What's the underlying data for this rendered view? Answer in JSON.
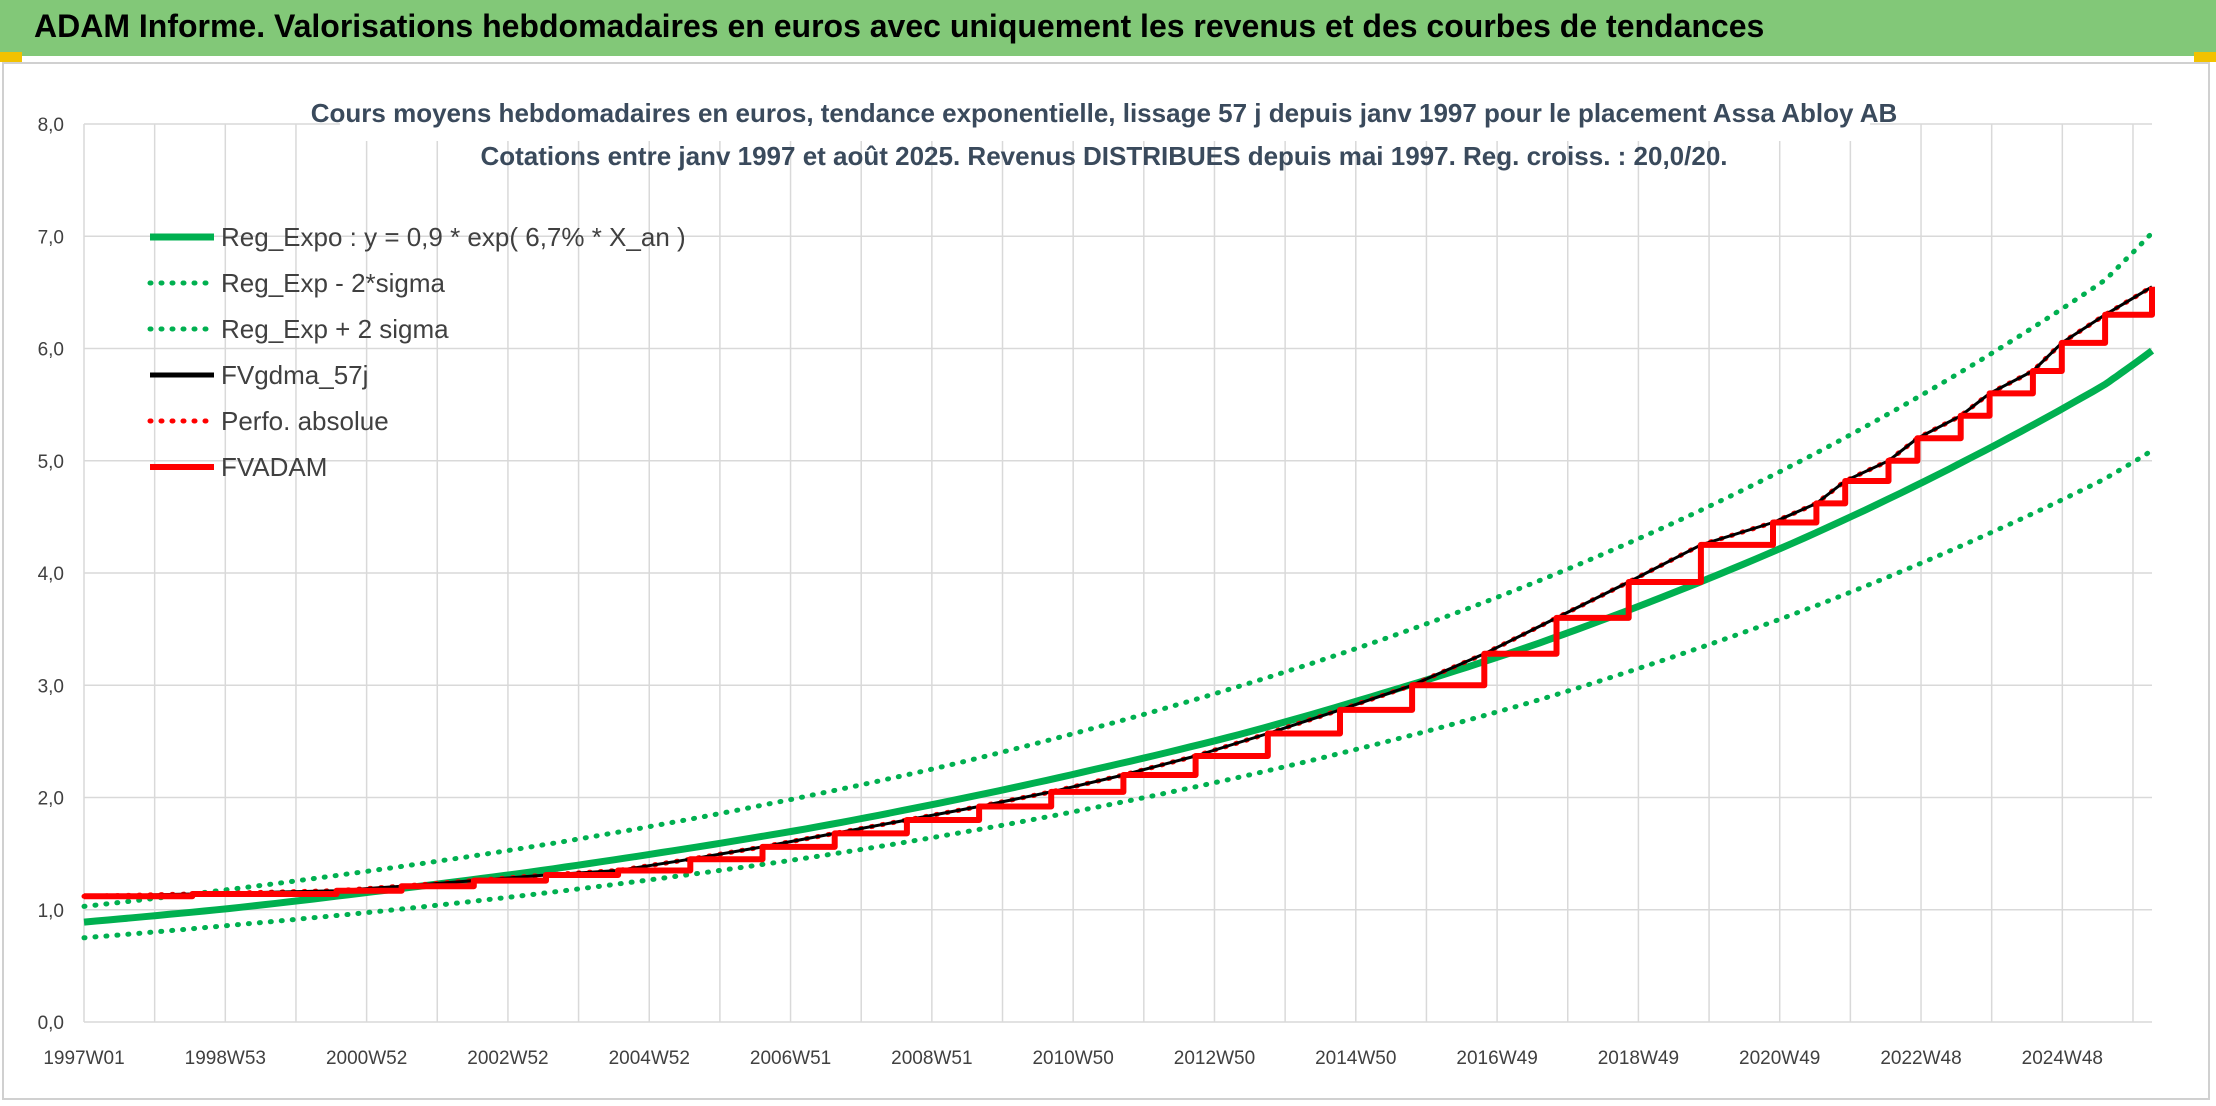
{
  "header": {
    "title": "ADAM Informe. Valorisations hebdomadaires en euros avec uniquement les revenus et des courbes de tendances"
  },
  "colors": {
    "banner": "#82c878",
    "green": "#00b050",
    "red": "#ff0000",
    "black": "#000000",
    "grid": "#d9d9d9"
  },
  "chart_data": {
    "type": "line",
    "title": "Cours moyens hebdomadaires en euros, tendance exponentielle, lissage 57 j depuis janv 1997 pour le placement Assa Abloy AB",
    "subtitle": "Cotations entre janv 1997 et août 2025. Revenus DISTRIBUES depuis mai 1997. Reg. croiss. : 20,0/20.",
    "xlabel": "",
    "ylabel": "",
    "ylim": [
      0,
      8
    ],
    "y_ticks": [
      "0,0",
      "1,0",
      "2,0",
      "3,0",
      "4,0",
      "5,0",
      "6,0",
      "7,0",
      "8,0"
    ],
    "x_ticks": [
      "1997W01",
      "1998W53",
      "2000W52",
      "2002W52",
      "2004W52",
      "2006W51",
      "2008W51",
      "2010W50",
      "2012W50",
      "2014W50",
      "2016W49",
      "2018W49",
      "2020W49",
      "2022W48",
      "2024W48"
    ],
    "x_range_years": [
      1997.0,
      2025.65
    ],
    "grid": true,
    "legend_position": "top-left",
    "series": [
      {
        "name": "Reg_Expo : y = 0,9 * exp( 6,7% *  X_an )",
        "style": "solid-thick",
        "color": "#00b050",
        "x": [
          1997,
          1999,
          2001,
          2003,
          2005,
          2007,
          2009,
          2011,
          2013,
          2015,
          2017,
          2019,
          2021,
          2023,
          2025,
          2025.65
        ],
        "values": [
          0.89,
          1.01,
          1.16,
          1.32,
          1.51,
          1.72,
          1.97,
          2.25,
          2.56,
          2.93,
          3.34,
          3.82,
          4.36,
          4.98,
          5.68,
          5.98
        ]
      },
      {
        "name": "Reg_Exp - 2*sigma",
        "style": "dotted",
        "color": "#00b050",
        "x": [
          1997,
          1999,
          2001,
          2003,
          2005,
          2007,
          2009,
          2011,
          2013,
          2015,
          2017,
          2019,
          2021,
          2023,
          2025,
          2025.65
        ],
        "values": [
          0.75,
          0.86,
          0.98,
          1.12,
          1.28,
          1.46,
          1.67,
          1.91,
          2.18,
          2.49,
          2.84,
          3.25,
          3.71,
          4.24,
          4.84,
          5.09
        ]
      },
      {
        "name": "Reg_Exp + 2 sigma",
        "style": "dotted",
        "color": "#00b050",
        "x": [
          1997,
          1999,
          2001,
          2003,
          2005,
          2007,
          2009,
          2011,
          2013,
          2015,
          2017,
          2019,
          2021,
          2023,
          2025,
          2025.65
        ],
        "values": [
          1.03,
          1.18,
          1.35,
          1.54,
          1.76,
          2.01,
          2.29,
          2.62,
          2.99,
          3.41,
          3.89,
          4.44,
          5.07,
          5.79,
          6.61,
          7.03
        ]
      },
      {
        "name": "FVgdma_57j",
        "style": "solid",
        "color": "#000000",
        "x": [
          1997,
          1999,
          2001,
          2003,
          2005,
          2007,
          2009,
          2011,
          2013,
          2015,
          2017,
          2019,
          2021,
          2023,
          2025,
          2025.65
        ],
        "values": [
          1.12,
          1.15,
          1.2,
          1.3,
          1.4,
          1.6,
          1.82,
          2.1,
          2.48,
          2.92,
          3.5,
          4.1,
          4.75,
          5.52,
          6.35,
          6.55
        ]
      },
      {
        "name": "Perfo. absolue",
        "style": "dotted",
        "color": "#ff0000",
        "x": [
          1997,
          1999,
          2001,
          2003,
          2005,
          2007,
          2009,
          2011,
          2013,
          2015,
          2017,
          2019,
          2021,
          2023,
          2025,
          2025.65
        ],
        "values": [
          1.12,
          1.15,
          1.2,
          1.3,
          1.4,
          1.6,
          1.82,
          2.1,
          2.48,
          2.92,
          3.5,
          4.1,
          4.75,
          5.52,
          6.35,
          6.55
        ]
      },
      {
        "name": "FVADAM",
        "style": "step-thick",
        "color": "#ff0000",
        "x": [
          1997.0,
          1998.5,
          2000.5,
          2001.4,
          2002.4,
          2003.4,
          2004.4,
          2005.4,
          2006.4,
          2007.4,
          2008.4,
          2009.4,
          2010.4,
          2011.4,
          2012.4,
          2013.4,
          2014.4,
          2015.4,
          2016.4,
          2017.4,
          2018.4,
          2019.4,
          2020.4,
          2021.0,
          2021.4,
          2022.0,
          2022.4,
          2023.0,
          2023.4,
          2024.0,
          2024.4,
          2025.0,
          2025.65
        ],
        "values": [
          1.12,
          1.14,
          1.17,
          1.21,
          1.26,
          1.31,
          1.35,
          1.45,
          1.56,
          1.68,
          1.8,
          1.92,
          2.05,
          2.2,
          2.37,
          2.57,
          2.78,
          3.0,
          3.28,
          3.6,
          3.92,
          4.25,
          4.45,
          4.62,
          4.82,
          5.0,
          5.2,
          5.4,
          5.6,
          5.8,
          6.05,
          6.3,
          6.55
        ]
      }
    ]
  }
}
